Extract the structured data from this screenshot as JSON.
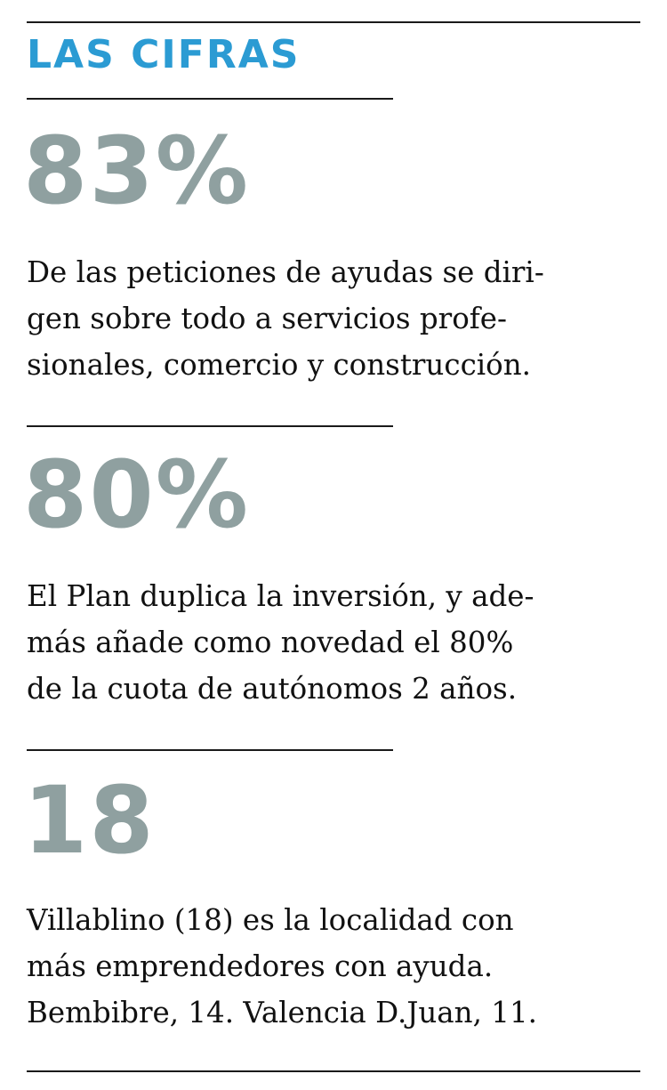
{
  "header": {
    "title": "LAS CIFRAS"
  },
  "items": [
    {
      "figure": "83%",
      "lines": [
        "De las peticiones de ayudas se diri-",
        "gen sobre todo a servicios profe-",
        "sionales, comercio y construcción."
      ]
    },
    {
      "figure": "80%",
      "lines": [
        "El Plan duplica la inversión, y ade-",
        "más añade como novedad el 80%",
        "de la cuota de autónomos 2 años."
      ]
    },
    {
      "figure": "18",
      "lines": [
        "Villablino (18) es la localidad con",
        "más emprendedores con ayuda.",
        "Bembibre, 14. Valencia D.Juan, 11."
      ]
    }
  ],
  "colors": {
    "heading": "#2b9bd3",
    "figure": "#8fa0a0",
    "text": "#111111",
    "rule": "#1a1a1a"
  }
}
